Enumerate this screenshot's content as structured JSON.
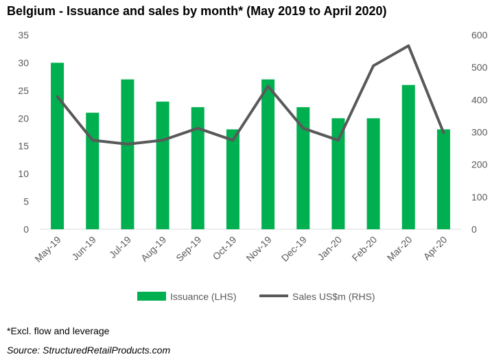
{
  "title": "Belgium - Issuance and sales by month* (May 2019 to April 2020)",
  "footnote": "*Excl. flow and leverage",
  "source": "Source: StructuredRetailProducts.com",
  "colors": {
    "bar": "#00B050",
    "line": "#595959",
    "axis": "#D9D9D9",
    "text": "#595959"
  },
  "chart_data": {
    "type": "bar",
    "categories": [
      "May-19",
      "Jun-19",
      "Jul-19",
      "Aug-19",
      "Sep-19",
      "Oct-19",
      "Nov-19",
      "Dec-19",
      "Jan-20",
      "Feb-20",
      "Mar-20",
      "Apr-20"
    ],
    "series": [
      {
        "name": "Issuance (LHS)",
        "type": "bar",
        "axis": "left",
        "values": [
          30,
          21,
          27,
          23,
          22,
          18,
          27,
          22,
          20,
          20,
          26,
          18
        ]
      },
      {
        "name": "Sales US$m (RHS)",
        "type": "line",
        "axis": "right",
        "values": [
          410,
          275,
          263,
          275,
          312,
          275,
          442,
          312,
          275,
          505,
          567,
          298
        ]
      }
    ],
    "ylim_left": [
      0,
      35
    ],
    "yticks_left": [
      0,
      5,
      10,
      15,
      20,
      25,
      30,
      35
    ],
    "ylim_right": [
      0,
      600
    ],
    "yticks_right": [
      0,
      100,
      200,
      300,
      400,
      500,
      600
    ],
    "grid": false,
    "legend": "bottom"
  }
}
